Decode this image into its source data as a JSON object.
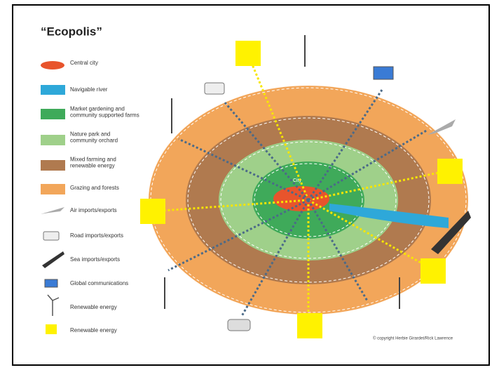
{
  "title": "“Ecopolis”",
  "legend": [
    {
      "lines": [
        "Central city"
      ]
    },
    {
      "lines": [
        "Navigable river"
      ]
    },
    {
      "lines": [
        "Market gardening and",
        "community supported farms"
      ]
    },
    {
      "lines": [
        "Nature park and",
        "community orchard"
      ]
    },
    {
      "lines": [
        "Mixed farming and",
        "renewable energy"
      ]
    },
    {
      "lines": [
        "Grazing and forests"
      ]
    },
    {
      "lines": [
        "Air imports/exports"
      ]
    },
    {
      "lines": [
        "Road imports/exports"
      ]
    },
    {
      "lines": [
        "Sea imports/exports"
      ]
    },
    {
      "lines": [
        "Global communications"
      ]
    },
    {
      "lines": [
        "Renewable energy"
      ]
    },
    {
      "lines": [
        "Renewable energy"
      ]
    }
  ],
  "city_label": "City",
  "copyright": "© copyright Herbie Girardet/Rick Lawrence"
}
